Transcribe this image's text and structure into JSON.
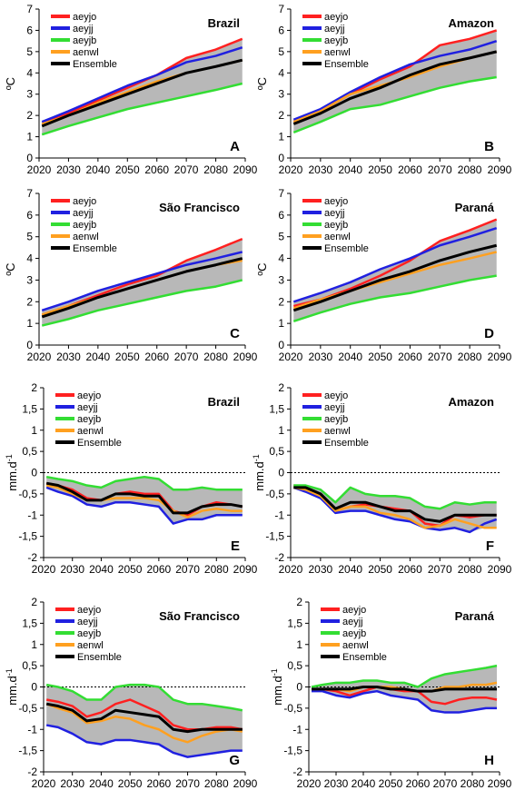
{
  "legend_labels": [
    "aeyjo",
    "aeyjj",
    "aeyjb",
    "aenwl",
    "Ensemble"
  ],
  "colors": {
    "aeyjo": "#ff2020",
    "aeyjj": "#2020e0",
    "aeyjb": "#33dd33",
    "aenwl": "#ffa020",
    "Ensemble": "#000000",
    "band": "#b8b8b8"
  },
  "chart_data": [
    {
      "type": "line",
      "panel": "A",
      "region": "Brazil",
      "ylabel": "ºC",
      "x": [
        2021,
        2030,
        2040,
        2050,
        2060,
        2070,
        2080,
        2089
      ],
      "ylim": [
        0,
        7
      ],
      "yticks": [
        0,
        1,
        2,
        3,
        4,
        5,
        6,
        7
      ],
      "xlim": [
        2020,
        2090
      ],
      "xticks": [
        2020,
        2030,
        2040,
        2050,
        2060,
        2070,
        2080,
        2090
      ],
      "series": [
        {
          "name": "aeyjo",
          "values": [
            1.6,
            2.1,
            2.7,
            3.3,
            3.9,
            4.7,
            5.1,
            5.6
          ]
        },
        {
          "name": "aeyjj",
          "values": [
            1.7,
            2.2,
            2.8,
            3.4,
            3.9,
            4.5,
            4.8,
            5.2
          ]
        },
        {
          "name": "aeyjb",
          "values": [
            1.1,
            1.5,
            1.9,
            2.3,
            2.6,
            2.9,
            3.2,
            3.5
          ]
        },
        {
          "name": "aenwl",
          "values": [
            1.6,
            2.0,
            2.6,
            3.1,
            3.6,
            4.0,
            4.3,
            4.6
          ]
        },
        {
          "name": "Ensemble",
          "values": [
            1.5,
            2.0,
            2.5,
            3.0,
            3.5,
            4.0,
            4.3,
            4.6
          ]
        }
      ]
    },
    {
      "type": "line",
      "panel": "B",
      "region": "Amazon",
      "ylabel": "ºC",
      "x": [
        2021,
        2030,
        2040,
        2050,
        2060,
        2070,
        2080,
        2089
      ],
      "ylim": [
        0,
        7
      ],
      "yticks": [
        0,
        1,
        2,
        3,
        4,
        5,
        6,
        7
      ],
      "xlim": [
        2020,
        2090
      ],
      "xticks": [
        2020,
        2030,
        2040,
        2050,
        2060,
        2070,
        2080,
        2090
      ],
      "series": [
        {
          "name": "aeyjo",
          "values": [
            1.7,
            2.2,
            3.0,
            3.7,
            4.3,
            5.3,
            5.6,
            6.0
          ]
        },
        {
          "name": "aeyjj",
          "values": [
            1.8,
            2.3,
            3.1,
            3.8,
            4.4,
            4.8,
            5.1,
            5.5
          ]
        },
        {
          "name": "aeyjb",
          "values": [
            1.2,
            1.7,
            2.3,
            2.5,
            2.9,
            3.3,
            3.6,
            3.8
          ]
        },
        {
          "name": "aenwl",
          "values": [
            1.7,
            2.2,
            3.0,
            3.4,
            3.8,
            4.3,
            4.7,
            5.0
          ]
        },
        {
          "name": "Ensemble",
          "values": [
            1.6,
            2.1,
            2.8,
            3.3,
            3.9,
            4.4,
            4.7,
            5.0
          ]
        }
      ]
    },
    {
      "type": "line",
      "panel": "C",
      "region": "São Francisco",
      "ylabel": "ºC",
      "x": [
        2021,
        2030,
        2040,
        2050,
        2060,
        2070,
        2080,
        2089
      ],
      "ylim": [
        0,
        7
      ],
      "yticks": [
        0,
        1,
        2,
        3,
        4,
        5,
        6,
        7
      ],
      "xlim": [
        2020,
        2090
      ],
      "xticks": [
        2020,
        2030,
        2040,
        2050,
        2060,
        2070,
        2080,
        2090
      ],
      "series": [
        {
          "name": "aeyjo",
          "values": [
            1.4,
            1.8,
            2.3,
            2.8,
            3.2,
            3.9,
            4.4,
            4.9
          ]
        },
        {
          "name": "aeyjj",
          "values": [
            1.6,
            2.0,
            2.5,
            2.9,
            3.3,
            3.7,
            4.0,
            4.3
          ]
        },
        {
          "name": "aeyjb",
          "values": [
            0.9,
            1.2,
            1.6,
            1.9,
            2.2,
            2.5,
            2.7,
            3.0
          ]
        },
        {
          "name": "aenwl",
          "values": [
            1.4,
            1.8,
            2.2,
            2.6,
            3.0,
            3.4,
            3.7,
            3.9
          ]
        },
        {
          "name": "Ensemble",
          "values": [
            1.3,
            1.7,
            2.2,
            2.6,
            3.0,
            3.4,
            3.7,
            4.0
          ]
        }
      ]
    },
    {
      "type": "line",
      "panel": "D",
      "region": "Paraná",
      "ylabel": "ºC",
      "x": [
        2021,
        2030,
        2040,
        2050,
        2060,
        2070,
        2080,
        2089
      ],
      "ylim": [
        0,
        7
      ],
      "yticks": [
        0,
        1,
        2,
        3,
        4,
        5,
        6,
        7
      ],
      "xlim": [
        2020,
        2090
      ],
      "xticks": [
        2020,
        2030,
        2040,
        2050,
        2060,
        2070,
        2080,
        2090
      ],
      "series": [
        {
          "name": "aeyjo",
          "values": [
            1.8,
            2.1,
            2.6,
            3.2,
            3.9,
            4.8,
            5.3,
            5.8
          ]
        },
        {
          "name": "aeyjj",
          "values": [
            2.0,
            2.4,
            2.9,
            3.5,
            4.0,
            4.6,
            5.0,
            5.4
          ]
        },
        {
          "name": "aeyjb",
          "values": [
            1.1,
            1.5,
            1.9,
            2.2,
            2.4,
            2.7,
            3.0,
            3.2
          ]
        },
        {
          "name": "aenwl",
          "values": [
            1.7,
            2.1,
            2.5,
            2.9,
            3.3,
            3.7,
            4.0,
            4.3
          ]
        },
        {
          "name": "Ensemble",
          "values": [
            1.6,
            2.0,
            2.5,
            3.0,
            3.4,
            3.9,
            4.3,
            4.6
          ]
        }
      ]
    },
    {
      "type": "line",
      "panel": "E",
      "region": "Brazil",
      "ylabel": "mm.d-1",
      "x": [
        2021,
        2025,
        2030,
        2035,
        2040,
        2045,
        2050,
        2055,
        2060,
        2065,
        2070,
        2075,
        2080,
        2085,
        2089
      ],
      "ylim": [
        -2,
        2
      ],
      "yticks": [
        -2,
        -1.5,
        -1,
        -0.5,
        0,
        0.5,
        1,
        1.5,
        2
      ],
      "xlim": [
        2020,
        2090
      ],
      "xticks": [
        2020,
        2030,
        2040,
        2050,
        2060,
        2070,
        2080,
        2090
      ],
      "series": [
        {
          "name": "aeyjo",
          "values": [
            -0.25,
            -0.3,
            -0.4,
            -0.6,
            -0.65,
            -0.5,
            -0.45,
            -0.5,
            -0.5,
            -0.9,
            -1.0,
            -0.8,
            -0.7,
            -0.75,
            -0.8
          ]
        },
        {
          "name": "aeyjj",
          "values": [
            -0.35,
            -0.45,
            -0.55,
            -0.75,
            -0.8,
            -0.7,
            -0.7,
            -0.75,
            -0.8,
            -1.2,
            -1.1,
            -1.1,
            -1.0,
            -1.0,
            -1.0
          ]
        },
        {
          "name": "aeyjb",
          "values": [
            -0.1,
            -0.15,
            -0.2,
            -0.3,
            -0.35,
            -0.2,
            -0.15,
            -0.1,
            -0.15,
            -0.4,
            -0.4,
            -0.35,
            -0.4,
            -0.4,
            -0.4
          ]
        },
        {
          "name": "aenwl",
          "values": [
            -0.3,
            -0.35,
            -0.5,
            -0.65,
            -0.65,
            -0.6,
            -0.6,
            -0.6,
            -0.65,
            -0.9,
            -1.05,
            -0.9,
            -0.85,
            -0.9,
            -0.9
          ]
        },
        {
          "name": "Ensemble",
          "values": [
            -0.25,
            -0.3,
            -0.45,
            -0.65,
            -0.65,
            -0.5,
            -0.5,
            -0.55,
            -0.55,
            -0.95,
            -0.95,
            -0.8,
            -0.75,
            -0.75,
            -0.8
          ]
        }
      ]
    },
    {
      "type": "line",
      "panel": "F",
      "region": "Amazon",
      "ylabel": "mm.d-1",
      "x": [
        2021,
        2025,
        2030,
        2035,
        2040,
        2045,
        2050,
        2055,
        2060,
        2065,
        2070,
        2075,
        2080,
        2085,
        2089
      ],
      "ylim": [
        -2,
        2
      ],
      "yticks": [
        -2,
        -1.5,
        -1,
        -0.5,
        0,
        0.5,
        1,
        1.5,
        2
      ],
      "xlim": [
        2020,
        2090
      ],
      "xticks": [
        2020,
        2030,
        2040,
        2050,
        2060,
        2070,
        2080,
        2090
      ],
      "series": [
        {
          "name": "aeyjo",
          "values": [
            -0.3,
            -0.35,
            -0.5,
            -0.9,
            -0.8,
            -0.75,
            -0.8,
            -0.85,
            -0.9,
            -1.2,
            -1.25,
            -1.0,
            -1.05,
            -1.0,
            -1.0
          ]
        },
        {
          "name": "aeyjj",
          "values": [
            -0.35,
            -0.45,
            -0.6,
            -0.95,
            -0.9,
            -0.9,
            -1.0,
            -1.1,
            -1.15,
            -1.3,
            -1.35,
            -1.3,
            -1.4,
            -1.2,
            -1.1
          ]
        },
        {
          "name": "aeyjb",
          "values": [
            -0.3,
            -0.3,
            -0.4,
            -0.7,
            -0.35,
            -0.5,
            -0.55,
            -0.55,
            -0.6,
            -0.8,
            -0.85,
            -0.7,
            -0.75,
            -0.7,
            -0.7
          ]
        },
        {
          "name": "aenwl",
          "values": [
            -0.35,
            -0.4,
            -0.55,
            -0.9,
            -0.8,
            -0.8,
            -0.95,
            -1.0,
            -1.1,
            -1.3,
            -1.25,
            -1.1,
            -1.2,
            -1.3,
            -1.3
          ]
        },
        {
          "name": "Ensemble",
          "values": [
            -0.35,
            -0.35,
            -0.5,
            -0.85,
            -0.7,
            -0.7,
            -0.8,
            -0.9,
            -0.9,
            -1.1,
            -1.15,
            -1.0,
            -1.0,
            -1.0,
            -1.0
          ]
        }
      ]
    },
    {
      "type": "line",
      "panel": "G",
      "region": "São Francisco",
      "ylabel": "mm.d-1",
      "x": [
        2021,
        2025,
        2030,
        2035,
        2040,
        2045,
        2050,
        2055,
        2060,
        2065,
        2070,
        2075,
        2080,
        2085,
        2089
      ],
      "ylim": [
        -2,
        2
      ],
      "yticks": [
        -2,
        -1.5,
        -1,
        -0.5,
        0,
        0.5,
        1,
        1.5,
        2
      ],
      "xlim": [
        2020,
        2090
      ],
      "xticks": [
        2020,
        2030,
        2040,
        2050,
        2060,
        2070,
        2080,
        2090
      ],
      "series": [
        {
          "name": "aeyjo",
          "values": [
            -0.3,
            -0.35,
            -0.45,
            -0.7,
            -0.6,
            -0.4,
            -0.3,
            -0.45,
            -0.6,
            -0.9,
            -1.0,
            -1.0,
            -0.95,
            -0.95,
            -1.0
          ]
        },
        {
          "name": "aeyjj",
          "values": [
            -0.9,
            -0.95,
            -1.1,
            -1.3,
            -1.35,
            -1.25,
            -1.25,
            -1.3,
            -1.35,
            -1.55,
            -1.65,
            -1.6,
            -1.55,
            -1.5,
            -1.5
          ]
        },
        {
          "name": "aeyjb",
          "values": [
            0.05,
            0.0,
            -0.1,
            -0.3,
            -0.3,
            0.0,
            0.05,
            0.05,
            0.0,
            -0.3,
            -0.4,
            -0.4,
            -0.45,
            -0.5,
            -0.55
          ]
        },
        {
          "name": "aenwl",
          "values": [
            -0.4,
            -0.5,
            -0.6,
            -0.85,
            -0.8,
            -0.7,
            -0.75,
            -0.9,
            -1.0,
            -1.2,
            -1.3,
            -1.15,
            -1.05,
            -1.0,
            -1.05
          ]
        },
        {
          "name": "Ensemble",
          "values": [
            -0.4,
            -0.45,
            -0.55,
            -0.8,
            -0.75,
            -0.55,
            -0.6,
            -0.65,
            -0.7,
            -1.0,
            -1.05,
            -1.0,
            -1.0,
            -1.0,
            -1.0
          ]
        }
      ]
    },
    {
      "type": "line",
      "panel": "H",
      "region": "Paraná",
      "ylabel": "mm.d-1",
      "x": [
        2021,
        2025,
        2030,
        2035,
        2040,
        2045,
        2050,
        2055,
        2060,
        2065,
        2070,
        2075,
        2080,
        2085,
        2089
      ],
      "ylim": [
        -2,
        2
      ],
      "yticks": [
        -2,
        -1.5,
        -1,
        -0.5,
        0,
        0.5,
        1,
        1.5,
        2
      ],
      "xlim": [
        2020,
        2090
      ],
      "xticks": [
        2020,
        2030,
        2040,
        2050,
        2060,
        2070,
        2080,
        2090
      ],
      "series": [
        {
          "name": "aeyjo",
          "values": [
            -0.05,
            -0.05,
            -0.1,
            -0.2,
            -0.1,
            0.0,
            -0.05,
            -0.1,
            -0.1,
            -0.35,
            -0.4,
            -0.3,
            -0.25,
            -0.25,
            -0.3
          ]
        },
        {
          "name": "aeyjj",
          "values": [
            -0.1,
            -0.1,
            -0.2,
            -0.25,
            -0.15,
            -0.1,
            -0.2,
            -0.25,
            -0.3,
            -0.55,
            -0.6,
            -0.6,
            -0.55,
            -0.5,
            -0.5
          ]
        },
        {
          "name": "aeyjb",
          "values": [
            0.0,
            0.05,
            0.1,
            0.1,
            0.15,
            0.15,
            0.1,
            0.1,
            0.0,
            0.2,
            0.3,
            0.35,
            0.4,
            0.45,
            0.5
          ]
        },
        {
          "name": "aenwl",
          "values": [
            -0.05,
            -0.05,
            -0.05,
            -0.1,
            0.0,
            0.0,
            0.0,
            -0.05,
            -0.1,
            -0.1,
            0.0,
            0.0,
            0.05,
            0.05,
            0.1
          ]
        },
        {
          "name": "Ensemble",
          "values": [
            -0.05,
            -0.05,
            -0.05,
            -0.05,
            0.0,
            0.0,
            -0.05,
            -0.05,
            -0.1,
            -0.1,
            -0.05,
            -0.05,
            -0.05,
            -0.05,
            -0.05
          ]
        }
      ]
    }
  ]
}
